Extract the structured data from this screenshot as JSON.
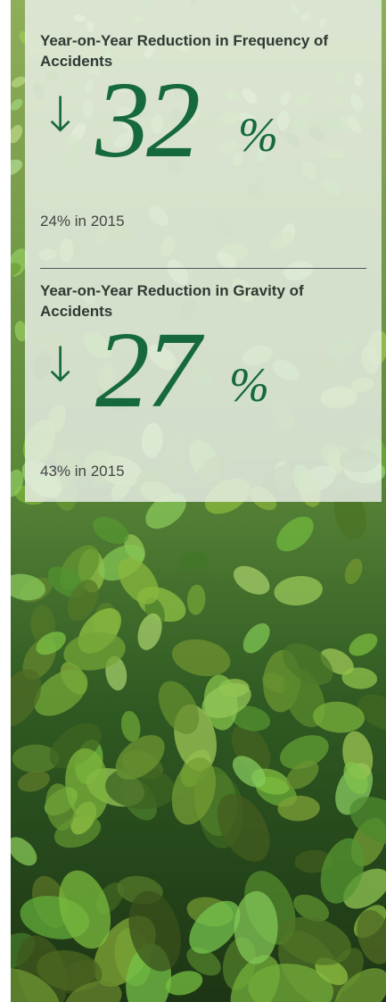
{
  "stats": [
    {
      "title": "Year-on-Year Reduction in Frequency of Accidents",
      "arrow": "↓",
      "value": "32",
      "unit": "%",
      "note": "24% in 2015"
    },
    {
      "title": "Year-on-Year Reduction in Gravity of Accidents",
      "arrow": "↓",
      "value": "27",
      "unit": "%",
      "note": "43% in 2015"
    }
  ]
}
